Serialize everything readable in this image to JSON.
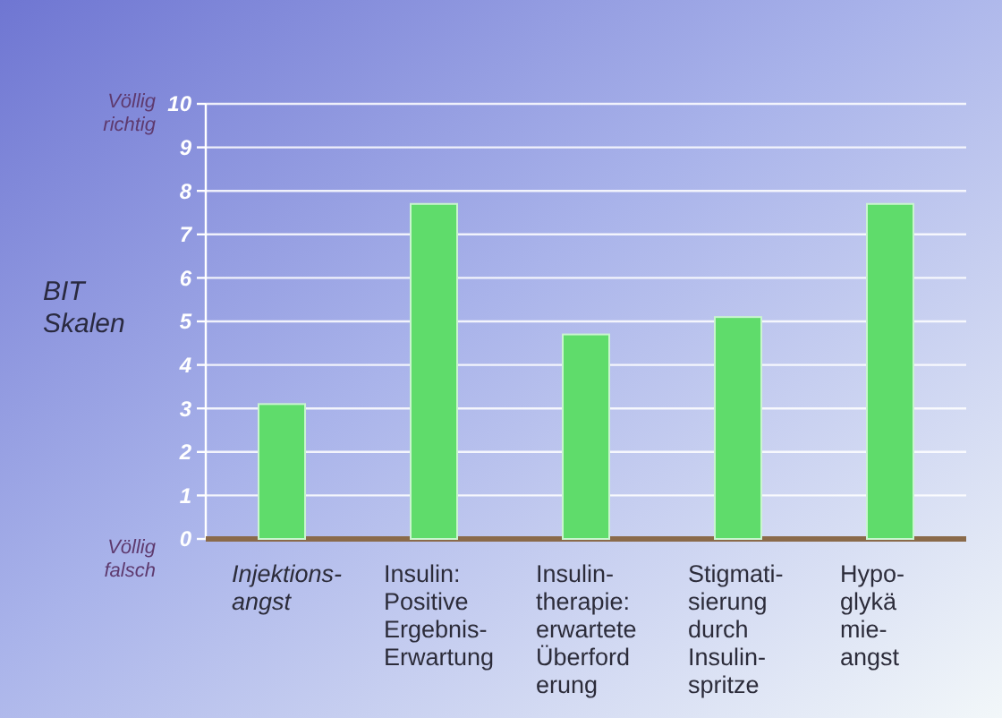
{
  "chart_data": {
    "type": "bar",
    "ylabel": "BIT\nSkalen",
    "categories": [
      "Injektions-\nangst",
      "Insulin:\nPositive\nErgebnis-\nErwartung",
      "Insulin-\ntherapie:\nerwartete\nÜberford\nerung",
      "Stigmati-\nsierung\ndurch\nInsulin-\nspritze",
      "Hypo-\nglykä\nmie-\nangst"
    ],
    "values": [
      3.1,
      7.7,
      4.7,
      5.1,
      7.7
    ],
    "color": "#5fdc6b",
    "ylim": [
      0,
      10
    ],
    "yticks": [
      0,
      1,
      2,
      3,
      4,
      5,
      6,
      7,
      8,
      9,
      10
    ],
    "grid": "y",
    "annotations": [
      "Völlig\nrichtig",
      "Völlig\nfalsch"
    ]
  }
}
